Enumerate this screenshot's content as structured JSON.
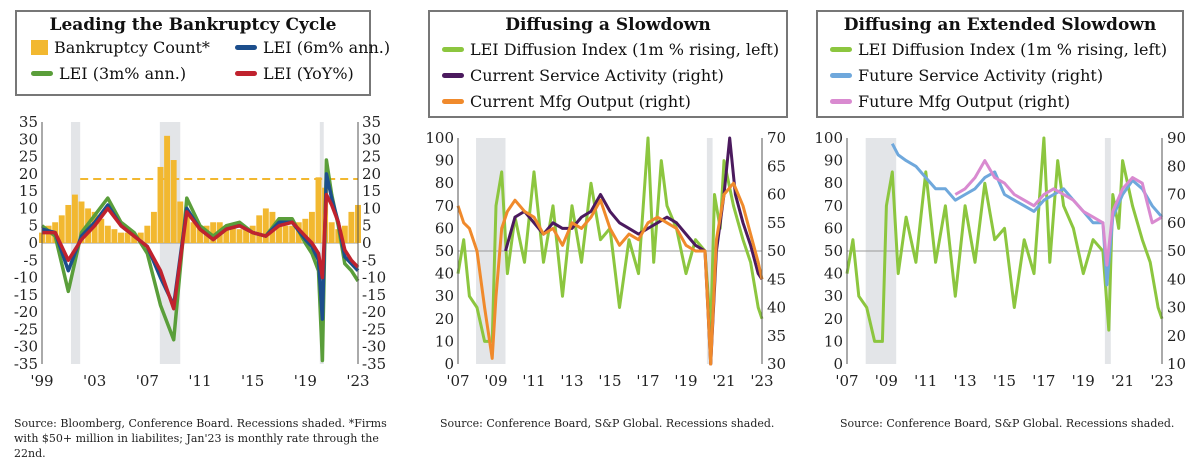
{
  "panels": [
    {
      "title": "Leading the Bankruptcy Cycle",
      "legend": [
        {
          "label": "Bankruptcy Count*",
          "color": "#f2b830",
          "shape": "box"
        },
        {
          "label": "LEI (6m% ann.)",
          "color": "#1c4e8c",
          "shape": "line"
        },
        {
          "label": "LEI (3m% ann.)",
          "color": "#5a9e3a",
          "shape": "line"
        },
        {
          "label": "LEI (YoY%)",
          "color": "#c0222e",
          "shape": "line"
        }
      ],
      "source": "Source:  Bloomberg, Conference Board. Recessions shaded. *Firms with $50+ million in liabilites; Jan'23 is monthly rate through the 22nd."
    },
    {
      "title": "Diffusing a Slowdown",
      "legend": [
        {
          "label": "LEI Diffusion Index (1m % rising, left)",
          "color": "#8cc63f",
          "shape": "line"
        },
        {
          "label": "Current Service Activity (right)",
          "color": "#4b1a5e",
          "shape": "line"
        },
        {
          "label": "Current Mfg Output (right)",
          "color": "#f08a2c",
          "shape": "line"
        }
      ],
      "source": "Source:  Conference Board, S&P Global. Recessions shaded."
    },
    {
      "title": "Diffusing an Extended Slowdown",
      "legend": [
        {
          "label": "LEI Diffusion Index (1m % rising, left)",
          "color": "#8cc63f",
          "shape": "line"
        },
        {
          "label": "Future Service Activity (right)",
          "color": "#6fa8dc",
          "shape": "line"
        },
        {
          "label": "Future Mfg Output (right)",
          "color": "#d98ad0",
          "shape": "line"
        }
      ],
      "source": "Source:  Conference Board, S&P Global. Recessions shaded."
    }
  ],
  "chart_data": [
    {
      "type": "bar",
      "title": "Leading the Bankruptcy Cycle",
      "x_range": [
        1999,
        2023
      ],
      "x_tick_labels": [
        "'99",
        "'03",
        "'07",
        "'11",
        "'15",
        "'19",
        "'23"
      ],
      "x_tick_values": [
        1999,
        2003,
        2007,
        2011,
        2015,
        2019,
        2023
      ],
      "y_range": [
        -35,
        35
      ],
      "y_ticks": [
        -35,
        -30,
        -25,
        -20,
        -15,
        -10,
        -5,
        0,
        5,
        10,
        15,
        20,
        25,
        30,
        35
      ],
      "y_right_ticks": [
        -35,
        -30,
        -25,
        -20,
        -15,
        -10,
        -5,
        0,
        5,
        10,
        15,
        20,
        25,
        30,
        35
      ],
      "recessions": [
        [
          2001.2,
          2001.9
        ],
        [
          2007.95,
          2009.5
        ],
        [
          2020.1,
          2020.4
        ]
      ],
      "reference_line": {
        "y": 18.5,
        "style": "dashed",
        "color": "#f2b830",
        "x_start": 2001.9
      },
      "series": [
        {
          "name": "Bankruptcy Count*",
          "type": "bar",
          "color": "#f2b830",
          "x": [
            1999,
            1999.5,
            2000,
            2000.5,
            2001,
            2001.5,
            2002,
            2002.5,
            2003,
            2003.5,
            2004,
            2004.5,
            2005,
            2005.5,
            2006,
            2006.5,
            2007,
            2007.5,
            2008,
            2008.5,
            2009,
            2009.5,
            2010,
            2010.5,
            2011,
            2011.5,
            2012,
            2012.5,
            2013,
            2013.5,
            2014,
            2014.5,
            2015,
            2015.5,
            2016,
            2016.5,
            2017,
            2017.5,
            2018,
            2018.5,
            2019,
            2019.5,
            2020,
            2020.5,
            2021,
            2021.5,
            2022,
            2022.5,
            2023
          ],
          "values": [
            3,
            5,
            6,
            8,
            11,
            14,
            12,
            10,
            9,
            7,
            5,
            4,
            3,
            3,
            2,
            3,
            5,
            9,
            22,
            31,
            24,
            12,
            8,
            6,
            5,
            5,
            6,
            6,
            5,
            5,
            4,
            4,
            5,
            8,
            10,
            9,
            6,
            5,
            5,
            6,
            7,
            9,
            19,
            16,
            6,
            4,
            5,
            9,
            11
          ]
        },
        {
          "name": "LEI (6m% ann.)",
          "type": "line",
          "color": "#1c4e8c",
          "x": [
            1999,
            2000,
            2001,
            2002,
            2003,
            2004,
            2005,
            2006,
            2007,
            2008,
            2009,
            2010,
            2011,
            2012,
            2013,
            2014,
            2015,
            2016,
            2017,
            2018,
            2019,
            2019.5,
            2020,
            2020.3,
            2020.6,
            2021,
            2021.5,
            2022,
            2022.5,
            2023
          ],
          "values": [
            4,
            3,
            -8,
            2,
            6,
            11,
            5,
            2,
            -1,
            -10,
            -18,
            10,
            4,
            1,
            4,
            5,
            3,
            2,
            6,
            6,
            1,
            -1,
            -5,
            -22,
            20,
            13,
            6,
            -4,
            -6,
            -8
          ]
        },
        {
          "name": "LEI (3m% ann.)",
          "type": "line",
          "color": "#5a9e3a",
          "x": [
            1999,
            2000,
            2001,
            2002,
            2003,
            2004,
            2005,
            2006,
            2007,
            2008,
            2009,
            2010,
            2011,
            2012,
            2013,
            2014,
            2015,
            2016,
            2017,
            2018,
            2019,
            2019.5,
            2020,
            2020.3,
            2020.6,
            2021,
            2021.5,
            2022,
            2022.5,
            2023
          ],
          "values": [
            5,
            2,
            -14,
            3,
            8,
            13,
            6,
            3,
            -3,
            -18,
            -28,
            13,
            5,
            2,
            5,
            6,
            3,
            2,
            7,
            7,
            0,
            -3,
            -8,
            -34,
            24,
            14,
            5,
            -6,
            -8,
            -11
          ]
        },
        {
          "name": "LEI (YoY%)",
          "type": "line",
          "color": "#c0222e",
          "x": [
            1999,
            2000,
            2001,
            2002,
            2003,
            2004,
            2005,
            2006,
            2007,
            2008,
            2009,
            2010,
            2011,
            2012,
            2013,
            2014,
            2015,
            2016,
            2017,
            2018,
            2019,
            2019.5,
            2020,
            2020.3,
            2020.6,
            2021,
            2021.5,
            2022,
            2022.5,
            2023
          ],
          "values": [
            3,
            3,
            -5,
            1,
            5,
            10,
            5,
            2,
            -1,
            -8,
            -19,
            9,
            4,
            1,
            4,
            5,
            3,
            2,
            5,
            6,
            2,
            0,
            -3,
            -10,
            14,
            11,
            6,
            -2,
            -5,
            -7
          ]
        }
      ]
    },
    {
      "type": "line",
      "title": "Diffusing a Slowdown",
      "x_range": [
        2007,
        2023
      ],
      "x_tick_labels": [
        "'07",
        "'09",
        "'11",
        "'13",
        "'15",
        "'17",
        "'19",
        "'21",
        "'23"
      ],
      "x_tick_values": [
        2007,
        2009,
        2011,
        2013,
        2015,
        2017,
        2019,
        2021,
        2023
      ],
      "y_left_range": [
        0,
        100
      ],
      "y_left_ticks": [
        0,
        10,
        20,
        30,
        40,
        50,
        60,
        70,
        80,
        90,
        100
      ],
      "y_right_range": [
        30,
        70
      ],
      "y_right_ticks": [
        30,
        35,
        40,
        45,
        50,
        55,
        60,
        65,
        70
      ],
      "recessions": [
        [
          2007.95,
          2009.5
        ],
        [
          2020.1,
          2020.4
        ]
      ],
      "reference_line": {
        "y_left": 50
      },
      "series": [
        {
          "name": "LEI Diffusion Index (1m % rising, left)",
          "axis": "left",
          "color": "#8cc63f",
          "x": [
            2007,
            2007.3,
            2007.6,
            2008,
            2008.4,
            2008.8,
            2009,
            2009.3,
            2009.6,
            2010,
            2010.5,
            2011,
            2011.5,
            2012,
            2012.5,
            2013,
            2013.5,
            2014,
            2014.5,
            2015,
            2015.5,
            2016,
            2016.5,
            2017,
            2017.3,
            2017.7,
            2018,
            2018.5,
            2019,
            2019.5,
            2020,
            2020.3,
            2020.5,
            2020.8,
            2021,
            2021.5,
            2022,
            2022.4,
            2022.8,
            2023
          ],
          "values": [
            40,
            55,
            30,
            25,
            10,
            10,
            70,
            85,
            40,
            65,
            45,
            85,
            45,
            70,
            30,
            70,
            45,
            80,
            55,
            60,
            25,
            55,
            40,
            100,
            45,
            90,
            70,
            60,
            40,
            55,
            50,
            15,
            75,
            60,
            90,
            70,
            55,
            45,
            25,
            20
          ]
        },
        {
          "name": "Current Service Activity (right)",
          "axis": "right",
          "color": "#4b1a5e",
          "x": [
            2009.5,
            2010,
            2010.5,
            2011,
            2011.5,
            2012,
            2012.5,
            2013,
            2013.5,
            2014,
            2014.5,
            2015,
            2015.5,
            2016,
            2016.5,
            2017,
            2017.5,
            2018,
            2018.5,
            2019,
            2019.5,
            2020,
            2020.3,
            2020.6,
            2021,
            2021.3,
            2021.6,
            2022,
            2022.4,
            2022.8,
            2023
          ],
          "values": [
            50,
            56,
            57,
            55,
            53,
            55,
            54,
            54,
            56,
            57,
            60,
            57,
            55,
            54,
            53,
            54,
            55,
            56,
            55,
            53,
            51,
            50,
            30,
            50,
            60,
            70,
            60,
            55,
            51,
            46,
            45
          ]
        },
        {
          "name": "Current Mfg Output (right)",
          "axis": "right",
          "color": "#f08a2c",
          "x": [
            2007,
            2007.3,
            2007.6,
            2008,
            2008.4,
            2008.8,
            2009,
            2009.3,
            2009.6,
            2010,
            2010.5,
            2011,
            2011.5,
            2012,
            2012.5,
            2013,
            2013.5,
            2014,
            2014.5,
            2015,
            2015.5,
            2016,
            2016.5,
            2017,
            2017.5,
            2018,
            2018.5,
            2019,
            2019.5,
            2020,
            2020.3,
            2020.6,
            2021,
            2021.5,
            2022,
            2022.4,
            2022.8,
            2023
          ],
          "values": [
            58,
            55,
            54,
            50,
            40,
            31,
            42,
            54,
            57,
            59,
            57,
            56,
            53,
            54,
            51,
            55,
            54,
            56,
            59,
            54,
            51,
            53,
            52,
            55,
            56,
            55,
            54,
            51,
            50,
            50,
            30,
            52,
            60,
            62,
            58,
            53,
            48,
            45
          ]
        }
      ]
    },
    {
      "type": "line",
      "title": "Diffusing an Extended Slowdown",
      "x_range": [
        2007,
        2023
      ],
      "x_tick_labels": [
        "'07",
        "'09",
        "'11",
        "'13",
        "'15",
        "'17",
        "'19",
        "'21",
        "'23"
      ],
      "x_tick_values": [
        2007,
        2009,
        2011,
        2013,
        2015,
        2017,
        2019,
        2021,
        2023
      ],
      "y_left_range": [
        0,
        100
      ],
      "y_left_ticks": [
        0,
        10,
        20,
        30,
        40,
        50,
        60,
        70,
        80,
        90,
        100
      ],
      "y_right_range": [
        10,
        90
      ],
      "y_right_ticks": [
        10,
        20,
        30,
        40,
        50,
        60,
        70,
        80,
        90
      ],
      "recessions": [
        [
          2007.95,
          2009.5
        ],
        [
          2020.1,
          2020.4
        ]
      ],
      "reference_line": {
        "y_left": 50
      },
      "series": [
        {
          "name": "LEI Diffusion Index (1m % rising, left)",
          "axis": "left",
          "color": "#8cc63f",
          "x": [
            2007,
            2007.3,
            2007.6,
            2008,
            2008.4,
            2008.8,
            2009,
            2009.3,
            2009.6,
            2010,
            2010.5,
            2011,
            2011.5,
            2012,
            2012.5,
            2013,
            2013.5,
            2014,
            2014.5,
            2015,
            2015.5,
            2016,
            2016.5,
            2017,
            2017.3,
            2017.7,
            2018,
            2018.5,
            2019,
            2019.5,
            2020,
            2020.3,
            2020.5,
            2020.8,
            2021,
            2021.5,
            2022,
            2022.4,
            2022.8,
            2023
          ],
          "values": [
            40,
            55,
            30,
            25,
            10,
            10,
            70,
            85,
            40,
            65,
            45,
            85,
            45,
            70,
            30,
            70,
            45,
            80,
            55,
            60,
            25,
            55,
            40,
            100,
            45,
            90,
            70,
            60,
            40,
            55,
            50,
            15,
            75,
            60,
            90,
            70,
            55,
            45,
            25,
            20
          ]
        },
        {
          "name": "Future Service Activity (right)",
          "axis": "right",
          "color": "#6fa8dc",
          "x": [
            2009.3,
            2009.6,
            2010,
            2010.5,
            2011,
            2011.5,
            2012,
            2012.5,
            2013,
            2013.5,
            2014,
            2014.5,
            2015,
            2015.5,
            2016,
            2016.5,
            2017,
            2017.5,
            2018,
            2018.5,
            2019,
            2019.5,
            2020,
            2020.2,
            2020.5,
            2021,
            2021.5,
            2022,
            2022.5,
            2023
          ],
          "values": [
            88,
            84,
            82,
            80,
            76,
            72,
            72,
            68,
            70,
            72,
            76,
            78,
            70,
            68,
            66,
            64,
            68,
            70,
            72,
            68,
            64,
            60,
            60,
            38,
            62,
            70,
            75,
            72,
            66,
            62
          ]
        },
        {
          "name": "Future Mfg Output (right)",
          "axis": "right",
          "color": "#d98ad0",
          "x": [
            2012.5,
            2013,
            2013.5,
            2014,
            2014.5,
            2015,
            2015.5,
            2016,
            2016.5,
            2017,
            2017.5,
            2018,
            2018.5,
            2019,
            2019.5,
            2020,
            2020.2,
            2020.5,
            2021,
            2021.5,
            2022,
            2022.5,
            2023
          ],
          "values": [
            70,
            72,
            76,
            82,
            76,
            74,
            70,
            68,
            66,
            70,
            72,
            70,
            68,
            64,
            62,
            60,
            45,
            64,
            72,
            76,
            74,
            60,
            62
          ]
        }
      ]
    }
  ]
}
